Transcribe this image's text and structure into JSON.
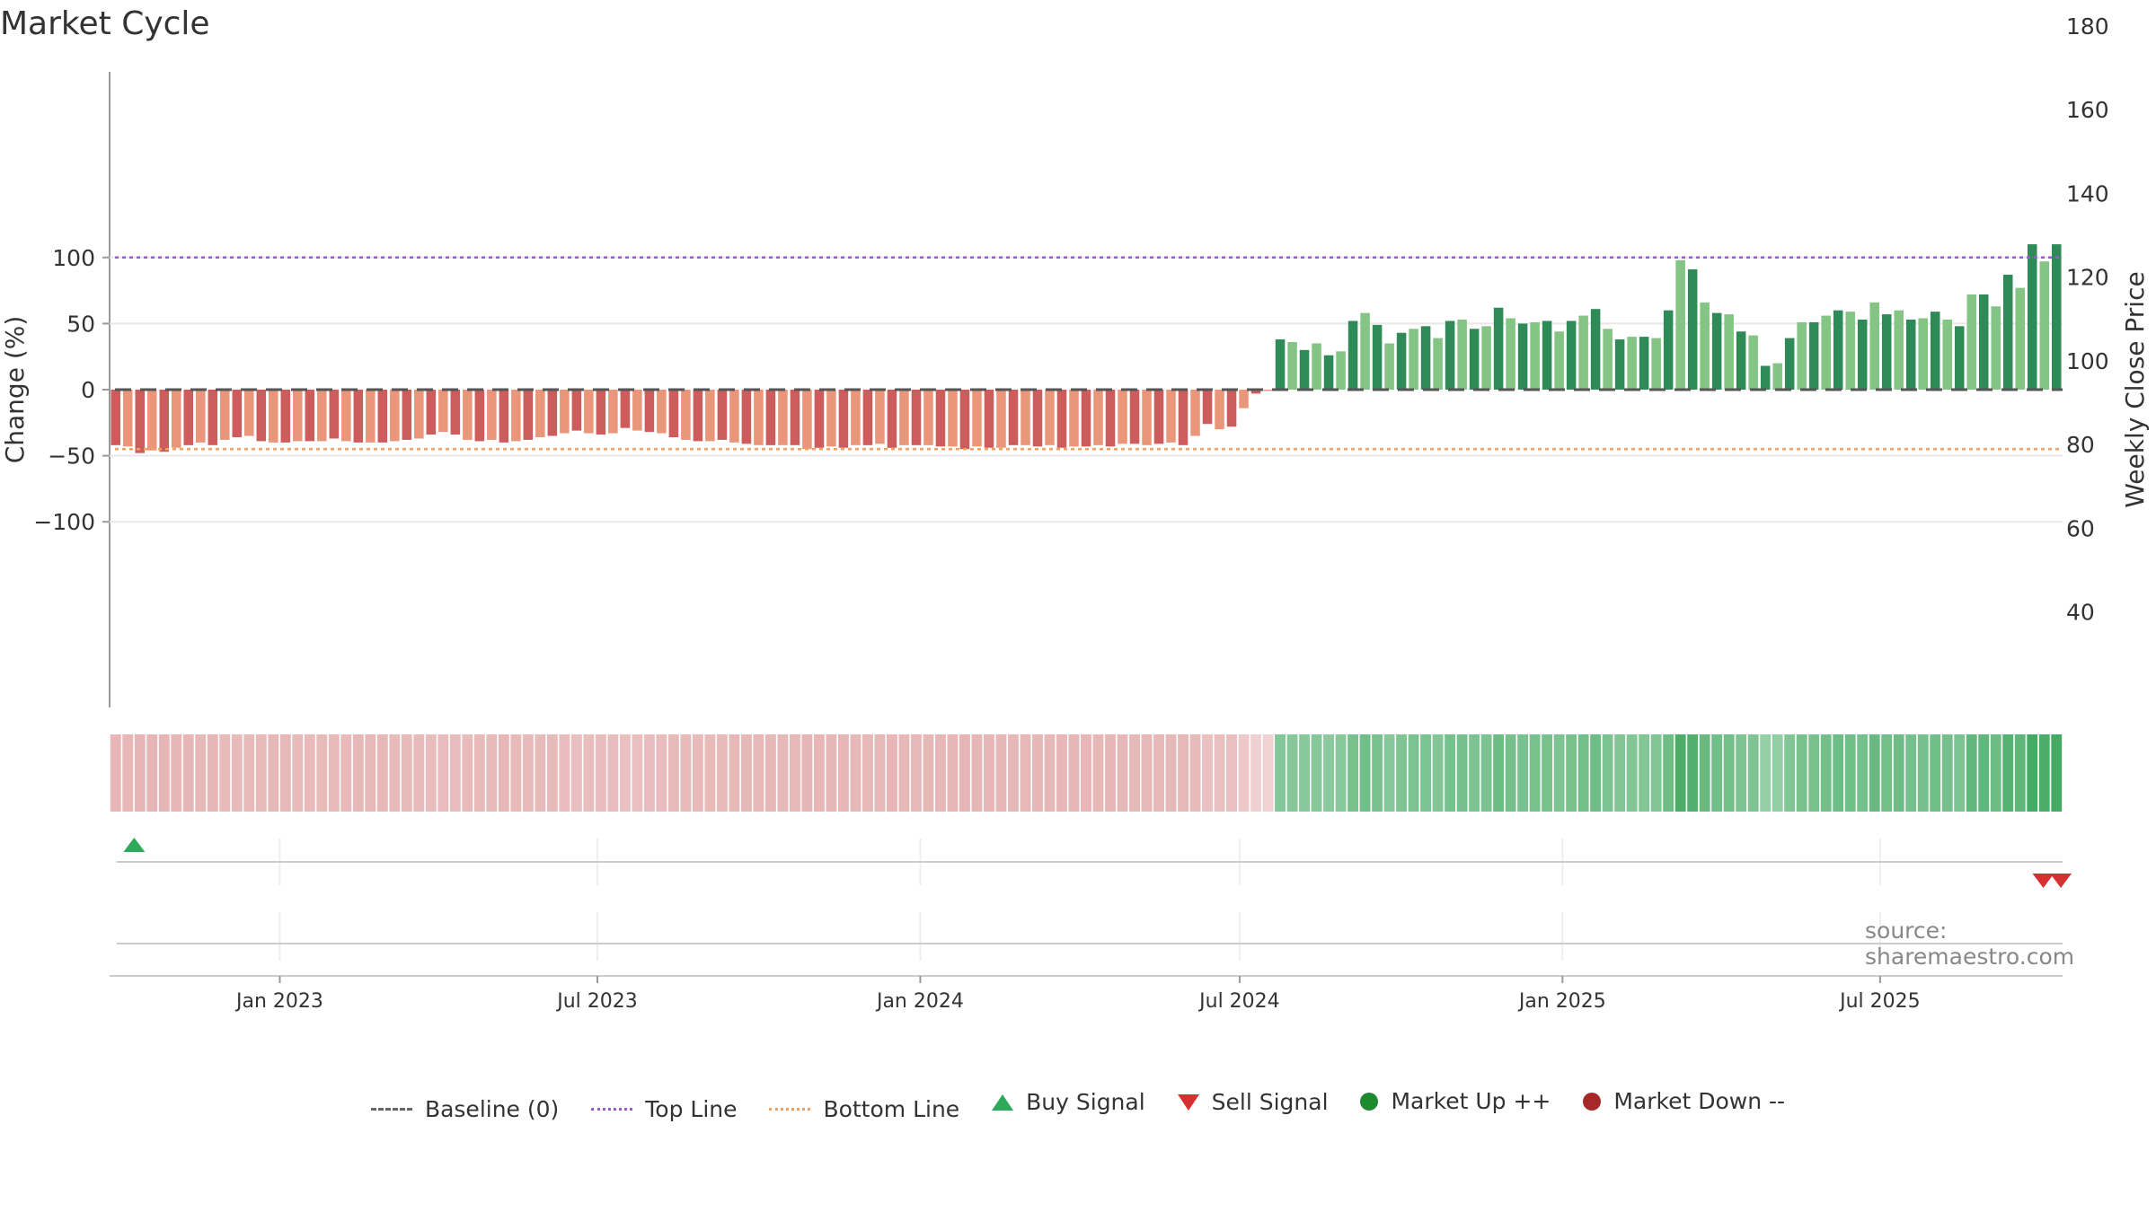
{
  "title": "Market Cycle",
  "source": "source: sharemaestro.com",
  "chart_data": {
    "type": "bar",
    "ylabel": "Change (%)",
    "y2label": "Weekly Close Price",
    "ylim": [
      -120,
      120
    ],
    "y2lim": [
      37,
      187
    ],
    "yticks": [
      100,
      50,
      0,
      -50,
      -100
    ],
    "ytick_labels": [
      "100",
      "50",
      "0",
      "−50",
      "−100"
    ],
    "y2ticks": [
      180,
      160,
      140,
      120,
      100,
      80,
      60,
      40
    ],
    "top_line": 100,
    "bottom_line": -45,
    "x_start": "2022-09-26",
    "x_end": "2025-10-13",
    "week_step_days": 5.25,
    "xticks": [
      {
        "date": "2023-01-01",
        "label": "Jan 2023"
      },
      {
        "date": "2023-07-01",
        "label": "Jul 2023"
      },
      {
        "date": "2024-01-01",
        "label": "Jan 2024"
      },
      {
        "date": "2024-07-01",
        "label": "Jul 2024"
      },
      {
        "date": "2025-01-01",
        "label": "Jan 2025"
      },
      {
        "date": "2025-07-01",
        "label": "Jul 2025"
      }
    ],
    "values": [
      -42,
      -43,
      -48,
      -46,
      -47,
      -44,
      -42,
      -40,
      -42,
      -38,
      -36,
      -35,
      -39,
      -40,
      -40,
      -39,
      -39,
      -39,
      -37,
      -39,
      -40,
      -40,
      -40,
      -39,
      -38,
      -37,
      -34,
      -32,
      -34,
      -38,
      -39,
      -38,
      -40,
      -39,
      -38,
      -36,
      -35,
      -33,
      -31,
      -33,
      -34,
      -33,
      -29,
      -31,
      -32,
      -33,
      -36,
      -38,
      -39,
      -39,
      -38,
      -40,
      -41,
      -42,
      -42,
      -42,
      -42,
      -45,
      -44,
      -43,
      -44,
      -42,
      -42,
      -41,
      -44,
      -42,
      -42,
      -42,
      -43,
      -43,
      -45,
      -43,
      -44,
      -44,
      -42,
      -42,
      -43,
      -42,
      -44,
      -43,
      -43,
      -42,
      -43,
      -41,
      -41,
      -42,
      -41,
      -40,
      -42,
      -35,
      -26,
      -30,
      -28,
      -14,
      -3,
      -1,
      38,
      36,
      30,
      35,
      26,
      29,
      52,
      58,
      49,
      35,
      43,
      46,
      48,
      39,
      52,
      53,
      46,
      48,
      62,
      54,
      50,
      51,
      52,
      44,
      52,
      56,
      61,
      46,
      38,
      40,
      40,
      39,
      60,
      98,
      91,
      66,
      58,
      57,
      44,
      41,
      18,
      20,
      39,
      51,
      51,
      56,
      60,
      59,
      53,
      66,
      57,
      60,
      53,
      54,
      59,
      53,
      48,
      72,
      72,
      63,
      87,
      77,
      110,
      97,
      110
    ],
    "heat_strip_shades": [
      0.4,
      0.4,
      0.42,
      0.41,
      0.42,
      0.4,
      0.4,
      0.38,
      0.4,
      0.37,
      0.36,
      0.35,
      0.37,
      0.38,
      0.38,
      0.37,
      0.37,
      0.37,
      0.36,
      0.37,
      0.38,
      0.38,
      0.38,
      0.37,
      0.37,
      0.36,
      0.34,
      0.33,
      0.34,
      0.37,
      0.37,
      0.37,
      0.38,
      0.37,
      0.37,
      0.35,
      0.35,
      0.33,
      0.32,
      0.33,
      0.34,
      0.33,
      0.31,
      0.32,
      0.33,
      0.33,
      0.35,
      0.37,
      0.37,
      0.37,
      0.37,
      0.38,
      0.38,
      0.39,
      0.39,
      0.39,
      0.39,
      0.41,
      0.4,
      0.4,
      0.4,
      0.39,
      0.39,
      0.38,
      0.4,
      0.39,
      0.39,
      0.39,
      0.4,
      0.4,
      0.41,
      0.4,
      0.4,
      0.4,
      0.39,
      0.39,
      0.4,
      0.39,
      0.4,
      0.4,
      0.4,
      0.39,
      0.4,
      0.38,
      0.38,
      0.39,
      0.38,
      0.38,
      0.39,
      0.35,
      0.3,
      0.32,
      0.31,
      0.22,
      0.14,
      0.12,
      0.4,
      0.39,
      0.37,
      0.39,
      0.35,
      0.36,
      0.5,
      0.55,
      0.48,
      0.39,
      0.44,
      0.46,
      0.47,
      0.41,
      0.5,
      0.51,
      0.46,
      0.47,
      0.58,
      0.52,
      0.49,
      0.5,
      0.5,
      0.45,
      0.5,
      0.53,
      0.57,
      0.46,
      0.41,
      0.42,
      0.42,
      0.41,
      0.57,
      0.85,
      0.8,
      0.61,
      0.55,
      0.54,
      0.45,
      0.43,
      0.27,
      0.28,
      0.41,
      0.5,
      0.5,
      0.53,
      0.56,
      0.55,
      0.51,
      0.61,
      0.54,
      0.56,
      0.51,
      0.52,
      0.55,
      0.51,
      0.47,
      0.66,
      0.66,
      0.59,
      0.77,
      0.7,
      0.9,
      0.85,
      0.9
    ],
    "signals_row": [
      {
        "type": "buy",
        "date": "2022-10-10"
      },
      {
        "type": "sell",
        "date": "2025-10-02"
      },
      {
        "type": "sell",
        "date": "2025-10-12"
      }
    ],
    "legend": [
      "Baseline (0)",
      "Top Line",
      "Bottom Line",
      "Buy Signal",
      "Sell Signal",
      "Market Up ++",
      "Market Down --"
    ],
    "colors": {
      "pos_dark": "#2e8b57",
      "pos_light": "#84c484",
      "neg_dark": "#cd5c5c",
      "neg_light": "#e9967a",
      "top_line": "#9b59d0",
      "bottom_line": "#f0a060",
      "buy": "#2eaa5a",
      "sell": "#d63030",
      "market_up": "#1e8a2e",
      "market_down": "#a62828"
    }
  }
}
